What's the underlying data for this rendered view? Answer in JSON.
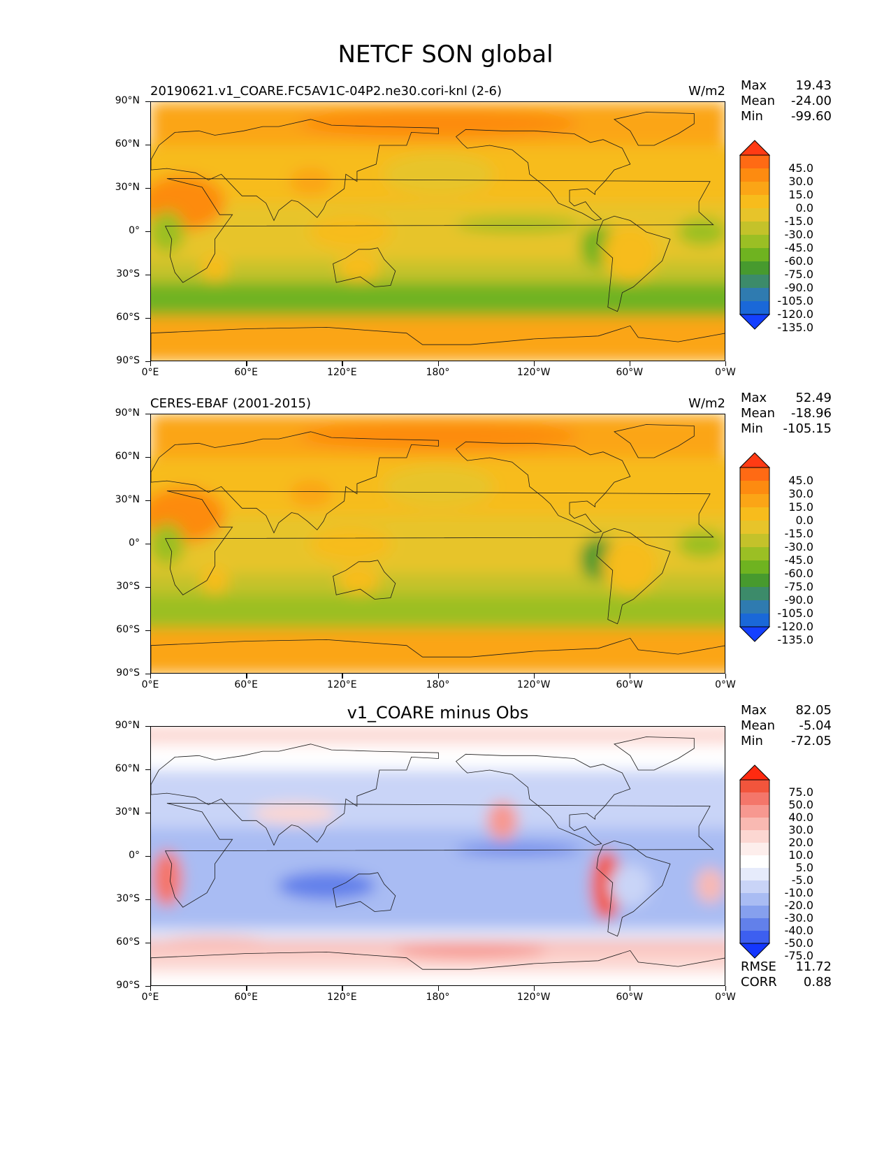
{
  "figure_title": "NETCF SON global",
  "lat_ticks": [
    "90°N",
    "60°N",
    "30°N",
    "0°",
    "30°S",
    "60°S",
    "90°S"
  ],
  "lon_ticks": [
    "0°E",
    "60°E",
    "120°E",
    "180°",
    "120°W",
    "60°W",
    "0°W"
  ],
  "panels": [
    {
      "title": "20190621.v1_COARE.FC5AV1C-04P2.ne30.cori-knl (2-6)",
      "units": "W/m2",
      "stats": [
        {
          "label": "Max",
          "value": "19.43"
        },
        {
          "label": "Mean",
          "value": "-24.00"
        },
        {
          "label": "Min",
          "value": "-99.60"
        }
      ],
      "colorbar": {
        "labels": [
          "45.0",
          "30.0",
          "15.0",
          "0.0",
          "-15.0",
          "-30.0",
          "-45.0",
          "-60.0",
          "-75.0",
          "-90.0",
          "-105.0",
          "-120.0",
          "-135.0"
        ],
        "colors": [
          "#ff3b14",
          "#ff6a14",
          "#fd8b10",
          "#fba516",
          "#f7bc1c",
          "#e7c42a",
          "#c4c22a",
          "#9bbf24",
          "#6fb320",
          "#479a2e",
          "#3c8b6a",
          "#2f7bb0",
          "#1a68d8",
          "#1440ff"
        ]
      }
    },
    {
      "title": "CERES-EBAF (2001-2015)",
      "units": "W/m2",
      "stats": [
        {
          "label": "Max",
          "value": "52.49"
        },
        {
          "label": "Mean",
          "value": "-18.96"
        },
        {
          "label": "Min",
          "value": "-105.15"
        }
      ],
      "colorbar": {
        "labels": [
          "45.0",
          "30.0",
          "15.0",
          "0.0",
          "-15.0",
          "-30.0",
          "-45.0",
          "-60.0",
          "-75.0",
          "-90.0",
          "-105.0",
          "-120.0",
          "-135.0"
        ],
        "colors": [
          "#ff3b14",
          "#ff6a14",
          "#fd8b10",
          "#fba516",
          "#f7bc1c",
          "#e7c42a",
          "#c4c22a",
          "#9bbf24",
          "#6fb320",
          "#479a2e",
          "#3c8b6a",
          "#2f7bb0",
          "#1a68d8",
          "#1440ff"
        ]
      }
    },
    {
      "title": "v1_COARE minus Obs",
      "units": "",
      "stats": [
        {
          "label": "Max",
          "value": "82.05"
        },
        {
          "label": "Mean",
          "value": "-5.04"
        },
        {
          "label": "Min",
          "value": "-72.05"
        }
      ],
      "extra_stats": [
        {
          "label": "RMSE",
          "value": "11.72"
        },
        {
          "label": "CORR",
          "value": "0.88"
        }
      ],
      "colorbar": {
        "labels": [
          "75.0",
          "50.0",
          "40.0",
          "30.0",
          "20.0",
          "10.0",
          "5.0",
          "-5.0",
          "-10.0",
          "-20.0",
          "-30.0",
          "-40.0",
          "-50.0",
          "-75.0"
        ],
        "colors": [
          "#ff2a10",
          "#f2553c",
          "#f4766a",
          "#f79890",
          "#f9b9b2",
          "#fcd7d2",
          "#fdeeec",
          "#ffffff",
          "#e6ebfb",
          "#c9d4f7",
          "#a9bcf3",
          "#86a0ee",
          "#6280ea",
          "#3d5ff0",
          "#1437ff"
        ]
      }
    }
  ]
}
